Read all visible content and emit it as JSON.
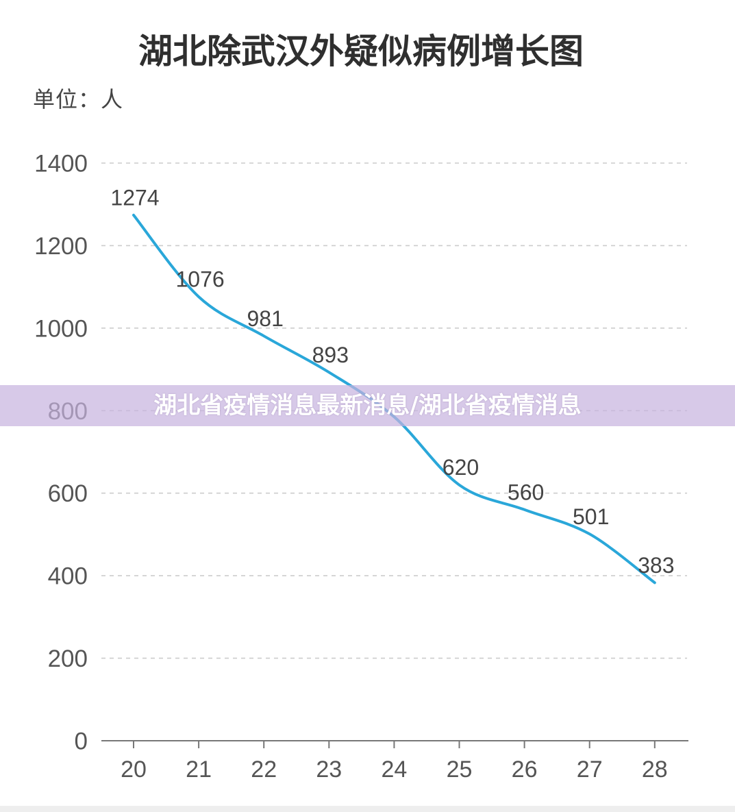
{
  "banner": {
    "text": "湖北省疫情消息最新消息/湖北省疫情消息"
  },
  "colors": {
    "line": "#2aa7d9",
    "grid": "#cccccc",
    "axis": "#777777",
    "tick_text": "#555555",
    "data_label_text": "#444444"
  },
  "chart_data": {
    "type": "line",
    "title": "湖北除武汉外疑似病例增长图",
    "ylabel": "单位：人",
    "xlabel": "",
    "categories": [
      "20",
      "21",
      "22",
      "23",
      "24",
      "25",
      "26",
      "27",
      "28"
    ],
    "values": [
      1274,
      1076,
      981,
      893,
      785,
      620,
      560,
      501,
      383
    ],
    "data_labels": [
      "1274",
      "1076",
      "981",
      "893",
      null,
      "620",
      "560",
      "501",
      "383"
    ],
    "ylim": [
      0,
      1400
    ],
    "yticks": [
      0,
      200,
      400,
      600,
      800,
      1000,
      1200,
      1400
    ],
    "grid": true,
    "legend": "none"
  }
}
